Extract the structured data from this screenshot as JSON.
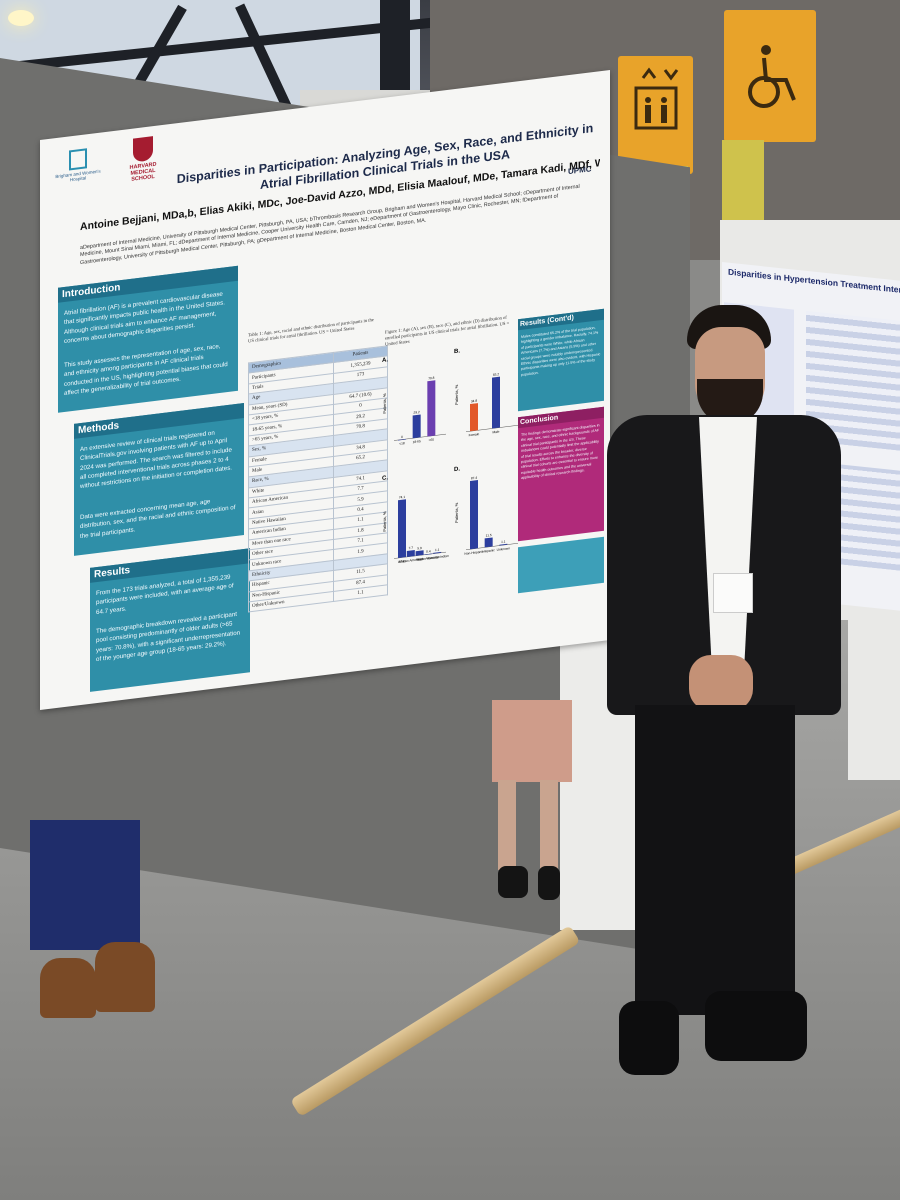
{
  "poster": {
    "title": "Disparities in Participation: Analyzing Age, Sex, Race, and Ethnicity in Atrial Fibrillation Clinical Trials in the USA",
    "authors": "Antoine Bejjani, MDa,b, Elias Akiki, MDc, Joe-David Azzo, MDd, Elisia Maalouf, MDe, Tamara Kadi, MDf, Wissam Ghusn, MDg",
    "affiliations": "aDepartment of Internal Medicine, University of Pittsburgh Medical Center, Pittsburgh, PA, USA; bThrombosis Research Group, Brigham and Women's Hospital, Harvard Medical School; cDepartment of Internal Medicine, Mount Sinai Miami, Miami, FL; dDepartment of Internal Medicine, Cooper University Health Care, Camden, NJ; eDepartment of Gastroenterology, Mayo Clinic, Rochester, MN; fDepartment of Gastroenterology, University of Pittsburgh Medical Center, Pittsburgh, PA; gDepartment of Internal Medicine, Boston Medical Center, Boston, MA.",
    "logo_bwh": "Brigham and Women's Hospital",
    "logo_harvard": "HARVARD MEDICAL SCHOOL",
    "logo_upmc": "UPMC",
    "intro_head": "Introduction",
    "intro_text": "Atrial fibrillation (AF) is a prevalent cardiovascular disease that significantly impacts public health in the United States. Although clinical trials aim to enhance AF management, concerns about demographic disparities persist.",
    "intro_text2": "This study assesses the representation of age, sex, race, and ethnicity among participants in AF clinical trials conducted in the US, highlighting potential biases that could affect the generalizability of trial outcomes.",
    "methods_head": "Methods",
    "methods_text": "An extensive review of clinical trials registered on ClinicalTrials.gov involving patients with AF up to April 2024 was performed. The search was filtered to include all completed interventional trials across phases 2 to 4 without restrictions on the initiation or completion dates.",
    "methods_text2": "Data were extracted concerning mean age, age distribution, sex, and the racial and ethnic composition of the trial participants.",
    "results_head": "Results",
    "results_text": "From the 173 trials analyzed, a total of 1,355,239 participants were included, with an average age of 64.7 years.",
    "results_text2": "The demographic breakdown revealed a participant pool consisting predominantly of older adults (>65 years: 70.8%), with a significant underrepresentation of the younger age group (18-65 years: 29.2%).",
    "table_caption": "Table 1: Age, sex, racial and ethnic distribution of participants in the US clinical trials for atrial fibrillation. US = United States",
    "table_header": [
      "Demographics",
      "Patients"
    ],
    "table_rows": [
      [
        "Participants",
        "1,355,239"
      ],
      [
        "Trials",
        "173"
      ],
      [
        "Age",
        ""
      ],
      [
        "Mean, years (SD)",
        "64.7 (10.6)"
      ],
      [
        "<18 years, %",
        "0"
      ],
      [
        "18-65 years, %",
        "29.2"
      ],
      [
        ">65 years, %",
        "70.8"
      ],
      [
        "Sex, %",
        ""
      ],
      [
        "Female",
        "34.8"
      ],
      [
        "Male",
        "65.2"
      ],
      [
        "Race, %",
        ""
      ],
      [
        "White",
        "74.1"
      ],
      [
        "African American",
        "7.7"
      ],
      [
        "Asian",
        "5.9"
      ],
      [
        "Native Hawaiian",
        "0.4"
      ],
      [
        "American Indian",
        "1.1"
      ],
      [
        "More than one race",
        "1.8"
      ],
      [
        "Other race",
        "7.1"
      ],
      [
        "Unknown race",
        "1.9"
      ],
      [
        "Ethnicity",
        ""
      ],
      [
        "Hispanic",
        "11.5"
      ],
      [
        "Non-Hispanic",
        "87.4"
      ],
      [
        "Other/Unknown",
        "1.1"
      ]
    ],
    "figure_caption": "Figure 1: Age (A), sex (B), race (C), and ethnic (D) distribution of enrolled participants in US clinical trials for atrial fibrillation. US = United States",
    "panel_labels": [
      "A.",
      "B.",
      "C.",
      "D."
    ],
    "axis_label": "Patients, %",
    "panel_a_cats": [
      "<18",
      "18-65",
      ">65"
    ],
    "panel_b_cats": [
      "Female",
      "Male"
    ],
    "panel_d_cats": [
      "Non-Hispanic",
      "Hispanic",
      "Unknown"
    ],
    "results_cont_head": "Results (Cont'd)",
    "results_cont_text": "Males constituted 65.2% of the trial population, highlighting a gender imbalance. Racially, 74.1% of participants were White, while African Americans (7.7%) and Asians (5.9%) and other racial groups were notably underrepresented. Ethnic disparities were also evident, with Hispanic participants making up only 11.5% of the study population.",
    "conclusion_head": "Conclusion",
    "conclusion_text": "The findings demonstrate significant disparities in the age, sex, race, and ethnic backgrounds of AF clinical trial participants in the US. These imbalances could potentially limit the applicability of trial results across the broader, diverse population. Efforts to enhance the diversity of clinical trial cohorts are essential to ensure more equitable health outcomes and the universal applicability of clinical research findings."
  },
  "poster2": {
    "title": "Disparities in Hypertension Treatment Intensification among Adults in a La"
  },
  "chart_data": [
    {
      "type": "bar",
      "title": "A.",
      "categories": [
        "<18",
        "18-65",
        ">65"
      ],
      "values": [
        0,
        29.2,
        70.8
      ],
      "ylabel": "Patients, %",
      "colors": [
        "#2c3e9e",
        "#2c3e9e",
        "#6b3fb0"
      ]
    },
    {
      "type": "bar",
      "title": "B.",
      "categories": [
        "Female",
        "Male"
      ],
      "values": [
        34.8,
        65.2
      ],
      "ylabel": "Patients, %",
      "colors": [
        "#e2582a",
        "#2c3e9e"
      ]
    },
    {
      "type": "bar",
      "title": "C.",
      "categories": [
        "White",
        "African American",
        "Asian",
        "Native Hawaiian",
        "American Indian"
      ],
      "values": [
        74.1,
        7.7,
        5.9,
        0.4,
        1.1
      ],
      "ylabel": "Patients, %",
      "colors": [
        "#2c3e9e"
      ]
    },
    {
      "type": "bar",
      "title": "D.",
      "categories": [
        "Non-Hispanic",
        "Hispanic",
        "Unknown"
      ],
      "values": [
        87.4,
        11.5,
        1.1
      ],
      "ylabel": "Patients, %",
      "colors": [
        "#2c3e9e"
      ]
    }
  ],
  "colors": {
    "teal": "#2f8fa8",
    "teal_dark": "#1f6f8a",
    "magenta": "#b02a7a",
    "sign_yellow": "#e8a32a"
  },
  "icons": [
    "elevator-icon",
    "wheelchair-icon"
  ]
}
